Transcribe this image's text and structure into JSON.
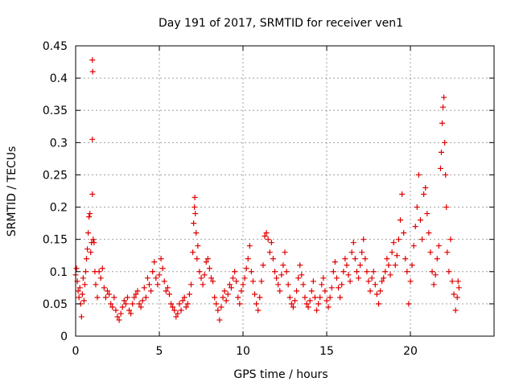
{
  "chart_data": {
    "type": "scatter",
    "title": "Day 191 of 2017, SRMTID for receiver ven1",
    "xlabel": "GPS time / hours",
    "ylabel": "SRMTID / TECUs",
    "xlim": [
      0,
      25
    ],
    "ylim": [
      0,
      0.45
    ],
    "x_ticks": [
      0,
      5,
      10,
      15,
      20
    ],
    "y_ticks": [
      0,
      0.05,
      0.1,
      0.15,
      0.2,
      0.25,
      0.3,
      0.35,
      0.4,
      0.45
    ],
    "x_tick_labels": [
      "0",
      "5",
      "10",
      "15",
      "20"
    ],
    "y_tick_labels": [
      "0",
      "0.05",
      "0.1",
      "0.15",
      "0.2",
      "0.25",
      "0.3",
      "0.35",
      "0.4",
      "0.45"
    ],
    "grid": true,
    "marker": "+",
    "marker_color": "#e00000",
    "series": [
      {
        "name": "ven1",
        "points": [
          [
            0.0,
            0.095
          ],
          [
            0.05,
            0.105
          ],
          [
            0.1,
            0.085
          ],
          [
            0.15,
            0.07
          ],
          [
            0.2,
            0.06
          ],
          [
            0.25,
            0.075
          ],
          [
            0.3,
            0.05
          ],
          [
            0.35,
            0.03
          ],
          [
            0.4,
            0.065
          ],
          [
            0.45,
            0.09
          ],
          [
            0.5,
            0.055
          ],
          [
            0.55,
            0.08
          ],
          [
            0.6,
            0.1
          ],
          [
            0.65,
            0.12
          ],
          [
            0.7,
            0.135
          ],
          [
            0.75,
            0.16
          ],
          [
            0.8,
            0.185
          ],
          [
            0.85,
            0.19
          ],
          [
            0.9,
            0.13
          ],
          [
            0.95,
            0.145
          ],
          [
            1.0,
            0.22
          ],
          [
            1.0,
            0.305
          ],
          [
            1.02,
            0.41
          ],
          [
            1.0,
            0.428
          ],
          [
            1.05,
            0.15
          ],
          [
            1.1,
            0.145
          ],
          [
            1.15,
            0.1
          ],
          [
            1.2,
            0.08
          ],
          [
            1.3,
            0.06
          ],
          [
            1.4,
            0.1
          ],
          [
            1.5,
            0.09
          ],
          [
            1.6,
            0.105
          ],
          [
            1.7,
            0.075
          ],
          [
            1.8,
            0.06
          ],
          [
            1.9,
            0.07
          ],
          [
            2.0,
            0.065
          ],
          [
            2.1,
            0.05
          ],
          [
            2.2,
            0.045
          ],
          [
            2.3,
            0.06
          ],
          [
            2.4,
            0.04
          ],
          [
            2.5,
            0.03
          ],
          [
            2.6,
            0.025
          ],
          [
            2.7,
            0.035
          ],
          [
            2.8,
            0.045
          ],
          [
            2.9,
            0.055
          ],
          [
            3.0,
            0.05
          ],
          [
            3.1,
            0.06
          ],
          [
            3.2,
            0.04
          ],
          [
            3.3,
            0.035
          ],
          [
            3.4,
            0.05
          ],
          [
            3.5,
            0.06
          ],
          [
            3.6,
            0.065
          ],
          [
            3.7,
            0.07
          ],
          [
            3.8,
            0.05
          ],
          [
            3.9,
            0.045
          ],
          [
            4.0,
            0.055
          ],
          [
            4.1,
            0.075
          ],
          [
            4.2,
            0.06
          ],
          [
            4.3,
            0.09
          ],
          [
            4.4,
            0.08
          ],
          [
            4.5,
            0.07
          ],
          [
            4.6,
            0.1
          ],
          [
            4.7,
            0.115
          ],
          [
            4.8,
            0.09
          ],
          [
            4.9,
            0.08
          ],
          [
            5.0,
            0.095
          ],
          [
            5.1,
            0.12
          ],
          [
            5.2,
            0.105
          ],
          [
            5.3,
            0.085
          ],
          [
            5.4,
            0.07
          ],
          [
            5.5,
            0.075
          ],
          [
            5.6,
            0.065
          ],
          [
            5.7,
            0.05
          ],
          [
            5.8,
            0.045
          ],
          [
            5.9,
            0.04
          ],
          [
            6.0,
            0.03
          ],
          [
            6.1,
            0.035
          ],
          [
            6.2,
            0.05
          ],
          [
            6.3,
            0.04
          ],
          [
            6.4,
            0.055
          ],
          [
            6.5,
            0.06
          ],
          [
            6.6,
            0.045
          ],
          [
            6.7,
            0.05
          ],
          [
            6.8,
            0.065
          ],
          [
            6.9,
            0.08
          ],
          [
            7.0,
            0.13
          ],
          [
            7.05,
            0.175
          ],
          [
            7.1,
            0.2
          ],
          [
            7.12,
            0.215
          ],
          [
            7.15,
            0.19
          ],
          [
            7.2,
            0.16
          ],
          [
            7.25,
            0.12
          ],
          [
            7.3,
            0.14
          ],
          [
            7.4,
            0.1
          ],
          [
            7.5,
            0.09
          ],
          [
            7.6,
            0.08
          ],
          [
            7.7,
            0.095
          ],
          [
            7.8,
            0.115
          ],
          [
            7.9,
            0.12
          ],
          [
            8.0,
            0.105
          ],
          [
            8.1,
            0.09
          ],
          [
            8.2,
            0.085
          ],
          [
            8.3,
            0.06
          ],
          [
            8.4,
            0.05
          ],
          [
            8.5,
            0.04
          ],
          [
            8.6,
            0.025
          ],
          [
            8.7,
            0.045
          ],
          [
            8.8,
            0.06
          ],
          [
            8.9,
            0.07
          ],
          [
            9.0,
            0.055
          ],
          [
            9.1,
            0.065
          ],
          [
            9.2,
            0.08
          ],
          [
            9.3,
            0.075
          ],
          [
            9.4,
            0.09
          ],
          [
            9.5,
            0.1
          ],
          [
            9.6,
            0.085
          ],
          [
            9.7,
            0.06
          ],
          [
            9.8,
            0.05
          ],
          [
            9.9,
            0.07
          ],
          [
            10.0,
            0.08
          ],
          [
            10.1,
            0.09
          ],
          [
            10.2,
            0.105
          ],
          [
            10.3,
            0.12
          ],
          [
            10.4,
            0.14
          ],
          [
            10.5,
            0.1
          ],
          [
            10.6,
            0.085
          ],
          [
            10.7,
            0.065
          ],
          [
            10.8,
            0.05
          ],
          [
            10.9,
            0.04
          ],
          [
            11.0,
            0.06
          ],
          [
            11.1,
            0.085
          ],
          [
            11.2,
            0.11
          ],
          [
            11.3,
            0.155
          ],
          [
            11.4,
            0.16
          ],
          [
            11.5,
            0.15
          ],
          [
            11.6,
            0.13
          ],
          [
            11.7,
            0.145
          ],
          [
            11.8,
            0.12
          ],
          [
            11.9,
            0.1
          ],
          [
            12.0,
            0.09
          ],
          [
            12.1,
            0.08
          ],
          [
            12.2,
            0.07
          ],
          [
            12.3,
            0.095
          ],
          [
            12.4,
            0.11
          ],
          [
            12.5,
            0.13
          ],
          [
            12.6,
            0.1
          ],
          [
            12.7,
            0.08
          ],
          [
            12.8,
            0.06
          ],
          [
            12.9,
            0.05
          ],
          [
            13.0,
            0.045
          ],
          [
            13.1,
            0.055
          ],
          [
            13.2,
            0.07
          ],
          [
            13.3,
            0.09
          ],
          [
            13.4,
            0.11
          ],
          [
            13.5,
            0.095
          ],
          [
            13.6,
            0.08
          ],
          [
            13.7,
            0.06
          ],
          [
            13.8,
            0.05
          ],
          [
            13.9,
            0.045
          ],
          [
            14.0,
            0.055
          ],
          [
            14.1,
            0.07
          ],
          [
            14.2,
            0.085
          ],
          [
            14.3,
            0.06
          ],
          [
            14.4,
            0.04
          ],
          [
            14.5,
            0.05
          ],
          [
            14.6,
            0.06
          ],
          [
            14.7,
            0.08
          ],
          [
            14.8,
            0.09
          ],
          [
            14.9,
            0.07
          ],
          [
            15.0,
            0.055
          ],
          [
            15.1,
            0.045
          ],
          [
            15.2,
            0.06
          ],
          [
            15.3,
            0.075
          ],
          [
            15.4,
            0.1
          ],
          [
            15.5,
            0.115
          ],
          [
            15.6,
            0.09
          ],
          [
            15.7,
            0.075
          ],
          [
            15.8,
            0.06
          ],
          [
            15.9,
            0.08
          ],
          [
            16.0,
            0.1
          ],
          [
            16.1,
            0.12
          ],
          [
            16.2,
            0.11
          ],
          [
            16.3,
            0.095
          ],
          [
            16.4,
            0.085
          ],
          [
            16.5,
            0.13
          ],
          [
            16.6,
            0.145
          ],
          [
            16.7,
            0.12
          ],
          [
            16.8,
            0.1
          ],
          [
            16.9,
            0.09
          ],
          [
            17.0,
            0.11
          ],
          [
            17.1,
            0.13
          ],
          [
            17.2,
            0.15
          ],
          [
            17.3,
            0.12
          ],
          [
            17.4,
            0.1
          ],
          [
            17.5,
            0.085
          ],
          [
            17.6,
            0.07
          ],
          [
            17.7,
            0.09
          ],
          [
            17.8,
            0.1
          ],
          [
            17.9,
            0.08
          ],
          [
            18.0,
            0.065
          ],
          [
            18.1,
            0.05
          ],
          [
            18.2,
            0.07
          ],
          [
            18.3,
            0.085
          ],
          [
            18.4,
            0.09
          ],
          [
            18.5,
            0.1
          ],
          [
            18.6,
            0.12
          ],
          [
            18.7,
            0.11
          ],
          [
            18.8,
            0.095
          ],
          [
            18.9,
            0.13
          ],
          [
            19.0,
            0.145
          ],
          [
            19.1,
            0.11
          ],
          [
            19.2,
            0.125
          ],
          [
            19.3,
            0.15
          ],
          [
            19.4,
            0.18
          ],
          [
            19.5,
            0.22
          ],
          [
            19.6,
            0.16
          ],
          [
            19.7,
            0.12
          ],
          [
            19.8,
            0.1
          ],
          [
            19.9,
            0.05
          ],
          [
            20.0,
            0.085
          ],
          [
            20.1,
            0.11
          ],
          [
            20.2,
            0.14
          ],
          [
            20.3,
            0.17
          ],
          [
            20.4,
            0.2
          ],
          [
            20.5,
            0.25
          ],
          [
            20.6,
            0.18
          ],
          [
            20.7,
            0.15
          ],
          [
            20.8,
            0.22
          ],
          [
            20.9,
            0.23
          ],
          [
            21.0,
            0.19
          ],
          [
            21.1,
            0.16
          ],
          [
            21.2,
            0.13
          ],
          [
            21.3,
            0.1
          ],
          [
            21.4,
            0.08
          ],
          [
            21.5,
            0.095
          ],
          [
            21.6,
            0.12
          ],
          [
            21.7,
            0.14
          ],
          [
            21.8,
            0.26
          ],
          [
            21.85,
            0.285
          ],
          [
            21.9,
            0.33
          ],
          [
            21.95,
            0.355
          ],
          [
            22.0,
            0.37
          ],
          [
            22.05,
            0.3
          ],
          [
            22.1,
            0.25
          ],
          [
            22.15,
            0.2
          ],
          [
            22.2,
            0.13
          ],
          [
            22.3,
            0.1
          ],
          [
            22.4,
            0.15
          ],
          [
            22.5,
            0.085
          ],
          [
            22.6,
            0.065
          ],
          [
            22.7,
            0.04
          ],
          [
            22.8,
            0.06
          ],
          [
            22.85,
            0.085
          ],
          [
            22.9,
            0.075
          ]
        ]
      }
    ]
  }
}
